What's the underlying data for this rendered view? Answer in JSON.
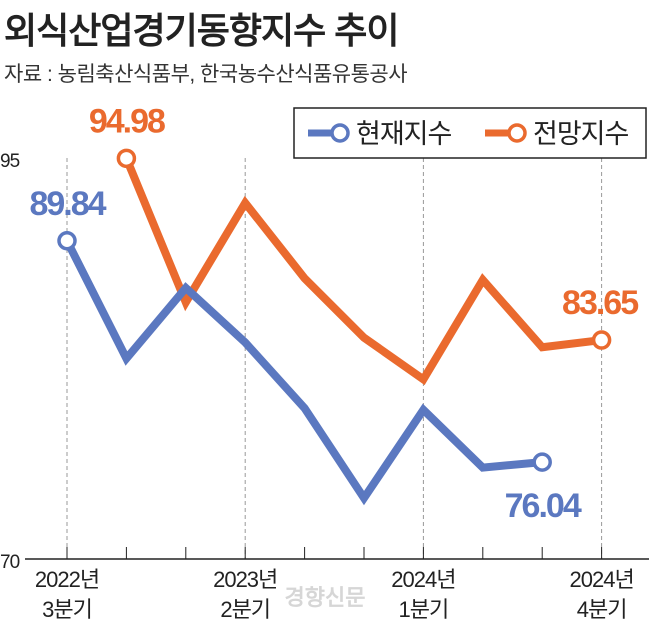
{
  "title": "외식산업경기동향지수 추이",
  "source": "자료 : 농림축산식품부, 한국농수산식품유통공사",
  "watermark": "경향신문",
  "chart_data": {
    "type": "line",
    "title": "외식산업경기동향지수 추이",
    "ylim": [
      70,
      95
    ],
    "yticks": [
      "70",
      "95"
    ],
    "categories": [
      "2022Q3",
      "2022Q4",
      "2023Q1",
      "2023Q2",
      "2023Q3",
      "2023Q4",
      "2024Q1",
      "2024Q2",
      "2024Q3",
      "2024Q4"
    ],
    "xtick_labels": [
      {
        "index": 0,
        "line1": "2022년",
        "line2": "3분기"
      },
      {
        "index": 3,
        "line1": "2023년",
        "line2": "2분기"
      },
      {
        "index": 6,
        "line1": "2024년",
        "line2": "1분기"
      },
      {
        "index": 9,
        "line1": "2024년",
        "line2": "4분기"
      }
    ],
    "grid": false,
    "legend": "top-right",
    "series": [
      {
        "name": "현재지수",
        "color": "#5b78c0",
        "values": [
          89.84,
          82.5,
          86.9,
          83.5,
          79.4,
          73.8,
          79.3,
          75.7,
          76.04,
          null
        ],
        "labels": [
          {
            "index": 0,
            "text": "89.84"
          },
          {
            "index": 8,
            "text": "76.04"
          }
        ]
      },
      {
        "name": "전망지수",
        "color": "#ea6a2e",
        "values": [
          null,
          94.98,
          86.0,
          92.2,
          87.5,
          83.8,
          81.2,
          87.4,
          83.2,
          83.65
        ],
        "labels": [
          {
            "index": 1,
            "text": "94.98"
          },
          {
            "index": 9,
            "text": "83.65"
          }
        ]
      }
    ]
  }
}
